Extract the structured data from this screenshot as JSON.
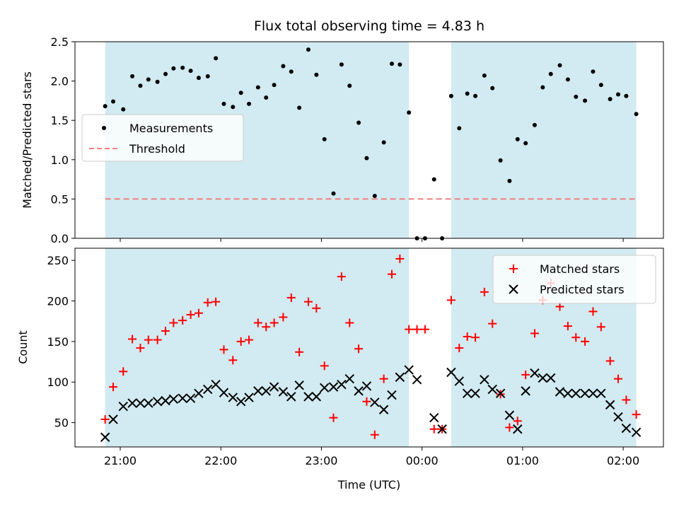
{
  "title": "Flux total observing time = 4.83 h",
  "xlabel": "Time (UTC)",
  "x_tick_labels": [
    "21:00",
    "22:00",
    "23:00",
    "00:00",
    "01:00",
    "02:00"
  ],
  "colors": {
    "shade": "#add8e6",
    "measurement": "#000000",
    "threshold": "#f08080",
    "matched": "#ff0000",
    "predicted": "#000000"
  },
  "chart_data": [
    {
      "type": "scatter",
      "ylabel": "Matched/Predicted stars",
      "ylim": [
        0,
        2.5
      ],
      "yticks": [
        "0.0",
        "0.5",
        "1.0",
        "1.5",
        "2.0",
        "2.5"
      ],
      "x_unit": "hours UTC (values past 24 = next day)",
      "xlim": [
        20.55,
        26.4
      ],
      "shaded_intervals": [
        [
          20.85,
          23.87
        ],
        [
          24.29,
          26.13
        ]
      ],
      "threshold": 0.5,
      "legend": {
        "position": "center-left",
        "entries": [
          "Measurements",
          "Threshold"
        ]
      },
      "series": [
        {
          "name": "Measurements",
          "points": [
            [
              20.85,
              1.68
            ],
            [
              20.93,
              1.74
            ],
            [
              21.03,
              1.64
            ],
            [
              21.12,
              2.06
            ],
            [
              21.2,
              1.94
            ],
            [
              21.28,
              2.02
            ],
            [
              21.37,
              1.99
            ],
            [
              21.45,
              2.09
            ],
            [
              21.53,
              2.16
            ],
            [
              21.62,
              2.17
            ],
            [
              21.7,
              2.13
            ],
            [
              21.78,
              2.04
            ],
            [
              21.87,
              2.06
            ],
            [
              21.95,
              2.29
            ],
            [
              22.03,
              1.71
            ],
            [
              22.12,
              1.67
            ],
            [
              22.2,
              1.85
            ],
            [
              22.28,
              1.71
            ],
            [
              22.37,
              1.92
            ],
            [
              22.45,
              1.79
            ],
            [
              22.53,
              1.95
            ],
            [
              22.62,
              2.19
            ],
            [
              22.7,
              2.12
            ],
            [
              22.78,
              1.66
            ],
            [
              22.87,
              2.4
            ],
            [
              22.95,
              2.08
            ],
            [
              23.03,
              1.26
            ],
            [
              23.12,
              0.57
            ],
            [
              23.2,
              2.21
            ],
            [
              23.28,
              1.94
            ],
            [
              23.37,
              1.47
            ],
            [
              23.45,
              1.02
            ],
            [
              23.53,
              0.54
            ],
            [
              23.62,
              1.22
            ],
            [
              23.7,
              2.22
            ],
            [
              23.78,
              2.21
            ],
            [
              23.87,
              1.6
            ],
            [
              23.95,
              0.0
            ],
            [
              24.03,
              0.0
            ],
            [
              24.12,
              0.75
            ],
            [
              24.2,
              0.0
            ],
            [
              24.29,
              1.81
            ],
            [
              24.37,
              1.4
            ],
            [
              24.45,
              1.84
            ],
            [
              24.53,
              1.81
            ],
            [
              24.62,
              2.07
            ],
            [
              24.7,
              1.91
            ],
            [
              24.78,
              0.99
            ],
            [
              24.87,
              0.73
            ],
            [
              24.95,
              1.26
            ],
            [
              25.03,
              1.21
            ],
            [
              25.12,
              1.44
            ],
            [
              25.2,
              1.92
            ],
            [
              25.28,
              2.09
            ],
            [
              25.37,
              2.2
            ],
            [
              25.45,
              2.02
            ],
            [
              25.53,
              1.8
            ],
            [
              25.62,
              1.75
            ],
            [
              25.7,
              2.12
            ],
            [
              25.78,
              1.95
            ],
            [
              25.87,
              1.77
            ],
            [
              25.95,
              1.83
            ],
            [
              26.03,
              1.81
            ],
            [
              26.13,
              1.58
            ]
          ]
        },
        {
          "name": "Threshold",
          "value": 0.5
        }
      ]
    },
    {
      "type": "scatter",
      "ylabel": "Count",
      "ylim": [
        20,
        265
      ],
      "yticks": [
        "50",
        "100",
        "150",
        "200",
        "250"
      ],
      "x_unit": "hours UTC (values past 24 = next day)",
      "xlim": [
        20.55,
        26.4
      ],
      "shaded_intervals": [
        [
          20.85,
          23.87
        ],
        [
          24.29,
          26.13
        ]
      ],
      "legend": {
        "position": "top-right",
        "entries": [
          "Matched stars",
          "Predicted stars"
        ]
      },
      "series": [
        {
          "name": "Matched stars",
          "points": [
            [
              20.85,
              54
            ],
            [
              20.93,
              94
            ],
            [
              21.03,
              113
            ],
            [
              21.12,
              153
            ],
            [
              21.2,
              142
            ],
            [
              21.28,
              152
            ],
            [
              21.37,
              152
            ],
            [
              21.45,
              163
            ],
            [
              21.53,
              173
            ],
            [
              21.62,
              176
            ],
            [
              21.7,
              183
            ],
            [
              21.78,
              185
            ],
            [
              21.87,
              198
            ],
            [
              21.95,
              199
            ],
            [
              22.03,
              140
            ],
            [
              22.12,
              127
            ],
            [
              22.2,
              150
            ],
            [
              22.28,
              152
            ],
            [
              22.37,
              173
            ],
            [
              22.45,
              168
            ],
            [
              22.53,
              173
            ],
            [
              22.62,
              180
            ],
            [
              22.7,
              204
            ],
            [
              22.78,
              137
            ],
            [
              22.87,
              199
            ],
            [
              22.95,
              191
            ],
            [
              23.03,
              120
            ],
            [
              23.12,
              56
            ],
            [
              23.2,
              230
            ],
            [
              23.28,
              173
            ],
            [
              23.37,
              141
            ],
            [
              23.45,
              76
            ],
            [
              23.53,
              35
            ],
            [
              23.62,
              104
            ],
            [
              23.7,
              233
            ],
            [
              23.78,
              252
            ],
            [
              23.87,
              165
            ],
            [
              23.95,
              165
            ],
            [
              24.03,
              165
            ],
            [
              24.12,
              42
            ],
            [
              24.2,
              42
            ],
            [
              24.29,
              201
            ],
            [
              24.37,
              142
            ],
            [
              24.45,
              156
            ],
            [
              24.53,
              155
            ],
            [
              24.62,
              211
            ],
            [
              24.7,
              172
            ],
            [
              24.78,
              85
            ],
            [
              24.87,
              44
            ],
            [
              24.95,
              52
            ],
            [
              25.03,
              109
            ],
            [
              25.12,
              160
            ],
            [
              25.2,
              201
            ],
            [
              25.28,
              222
            ],
            [
              25.37,
              193
            ],
            [
              25.45,
              169
            ],
            [
              25.53,
              155
            ],
            [
              25.62,
              150
            ],
            [
              25.7,
              187
            ],
            [
              25.78,
              168
            ],
            [
              25.87,
              126
            ],
            [
              25.95,
              104
            ],
            [
              26.03,
              78
            ],
            [
              26.13,
              60
            ]
          ]
        },
        {
          "name": "Predicted stars",
          "points": [
            [
              20.85,
              32
            ],
            [
              20.93,
              54
            ],
            [
              21.03,
              70
            ],
            [
              21.12,
              74
            ],
            [
              21.2,
              74
            ],
            [
              21.28,
              74
            ],
            [
              21.37,
              76
            ],
            [
              21.45,
              77
            ],
            [
              21.53,
              79
            ],
            [
              21.62,
              80
            ],
            [
              21.7,
              80
            ],
            [
              21.78,
              86
            ],
            [
              21.87,
              91
            ],
            [
              21.95,
              97
            ],
            [
              22.03,
              87
            ],
            [
              22.12,
              81
            ],
            [
              22.2,
              76
            ],
            [
              22.28,
              81
            ],
            [
              22.37,
              89
            ],
            [
              22.45,
              89
            ],
            [
              22.53,
              94
            ],
            [
              22.62,
              88
            ],
            [
              22.7,
              82
            ],
            [
              22.78,
              96
            ],
            [
              22.87,
              82
            ],
            [
              22.95,
              82
            ],
            [
              23.03,
              93
            ],
            [
              23.12,
              94
            ],
            [
              23.2,
              97
            ],
            [
              23.28,
              104
            ],
            [
              23.37,
              89
            ],
            [
              23.45,
              95
            ],
            [
              23.53,
              75
            ],
            [
              23.62,
              66
            ],
            [
              23.7,
              84
            ],
            [
              23.78,
              106
            ],
            [
              23.87,
              115
            ],
            [
              23.95,
              103
            ],
            [
              24.12,
              56
            ],
            [
              24.2,
              42
            ],
            [
              24.29,
              112
            ],
            [
              24.37,
              101
            ],
            [
              24.45,
              86
            ],
            [
              24.53,
              86
            ],
            [
              24.62,
              103
            ],
            [
              24.7,
              91
            ],
            [
              24.78,
              86
            ],
            [
              24.87,
              59
            ],
            [
              24.95,
              42
            ],
            [
              25.03,
              89
            ],
            [
              25.12,
              111
            ],
            [
              25.2,
              105
            ],
            [
              25.28,
              105
            ],
            [
              25.37,
              88
            ],
            [
              25.45,
              86
            ],
            [
              25.53,
              86
            ],
            [
              25.62,
              86
            ],
            [
              25.7,
              86
            ],
            [
              25.78,
              86
            ],
            [
              25.87,
              72
            ],
            [
              25.95,
              57
            ],
            [
              26.03,
              43
            ],
            [
              26.13,
              38
            ]
          ]
        }
      ]
    }
  ]
}
